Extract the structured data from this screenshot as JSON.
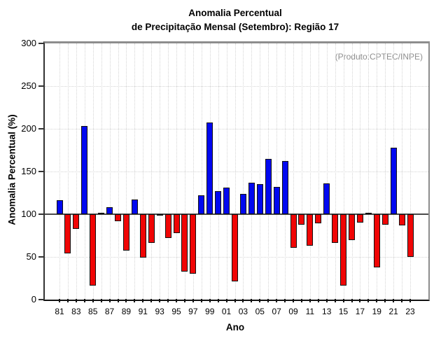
{
  "title": {
    "line1": "Anomalia Percentual",
    "line2": "de Precipitação Mensal (Setembro): Região 17"
  },
  "annotation": "(Produto:CPTEC/INPE)",
  "chart_data": {
    "type": "bar",
    "title": "Anomalia Percentual de Precipitação Mensal (Setembro): Região 17",
    "xlabel": "Ano",
    "ylabel": "Anomalia Percentual (%)",
    "ylim": [
      0,
      300
    ],
    "yticks": [
      0,
      50,
      100,
      150,
      200,
      250,
      300
    ],
    "baseline": 100,
    "grid": "dotted, vertical line per year, horizontal every 50",
    "legend": "none",
    "colors": {
      "above_baseline": "#0008f0",
      "below_baseline": "#f00505",
      "bar_border": "#111111",
      "baseline_line": "#4a4a4a",
      "annotation_text": "#8f8f8f",
      "frame_gray": "#8d8d8d"
    },
    "bars": [
      {
        "year": 1981,
        "label": "81",
        "value": 116
      },
      {
        "year": 1982,
        "label": "",
        "value": 54
      },
      {
        "year": 1983,
        "label": "83",
        "value": 83
      },
      {
        "year": 1984,
        "label": "",
        "value": 203
      },
      {
        "year": 1985,
        "label": "85",
        "value": 16
      },
      {
        "year": 1986,
        "label": "",
        "value": 100
      },
      {
        "year": 1987,
        "label": "87",
        "value": 108
      },
      {
        "year": 1988,
        "label": "",
        "value": 92
      },
      {
        "year": 1989,
        "label": "89",
        "value": 57
      },
      {
        "year": 1990,
        "label": "",
        "value": 117
      },
      {
        "year": 1991,
        "label": "91",
        "value": 49
      },
      {
        "year": 1992,
        "label": "",
        "value": 66
      },
      {
        "year": 1993,
        "label": "93",
        "value": 98
      },
      {
        "year": 1994,
        "label": "",
        "value": 72
      },
      {
        "year": 1995,
        "label": "95",
        "value": 78
      },
      {
        "year": 1996,
        "label": "",
        "value": 33
      },
      {
        "year": 1997,
        "label": "97",
        "value": 30
      },
      {
        "year": 1998,
        "label": "",
        "value": 122
      },
      {
        "year": 1999,
        "label": "99",
        "value": 207
      },
      {
        "year": 2000,
        "label": "",
        "value": 127
      },
      {
        "year": 2001,
        "label": "01",
        "value": 131
      },
      {
        "year": 2002,
        "label": "",
        "value": 21
      },
      {
        "year": 2003,
        "label": "03",
        "value": 124
      },
      {
        "year": 2004,
        "label": "",
        "value": 137
      },
      {
        "year": 2005,
        "label": "05",
        "value": 135
      },
      {
        "year": 2006,
        "label": "",
        "value": 165
      },
      {
        "year": 2007,
        "label": "07",
        "value": 132
      },
      {
        "year": 2008,
        "label": "",
        "value": 162
      },
      {
        "year": 2009,
        "label": "09",
        "value": 61
      },
      {
        "year": 2010,
        "label": "",
        "value": 88
      },
      {
        "year": 2011,
        "label": "11",
        "value": 63
      },
      {
        "year": 2012,
        "label": "",
        "value": 89
      },
      {
        "year": 2013,
        "label": "13",
        "value": 136
      },
      {
        "year": 2014,
        "label": "",
        "value": 66
      },
      {
        "year": 2015,
        "label": "15",
        "value": 16
      },
      {
        "year": 2016,
        "label": "",
        "value": 70
      },
      {
        "year": 2017,
        "label": "17",
        "value": 90
      },
      {
        "year": 2018,
        "label": "",
        "value": 101
      },
      {
        "year": 2019,
        "label": "19",
        "value": 38
      },
      {
        "year": 2020,
        "label": "",
        "value": 88
      },
      {
        "year": 2021,
        "label": "21",
        "value": 178
      },
      {
        "year": 2022,
        "label": "",
        "value": 87
      },
      {
        "year": 2023,
        "label": "23",
        "value": 50
      }
    ]
  }
}
